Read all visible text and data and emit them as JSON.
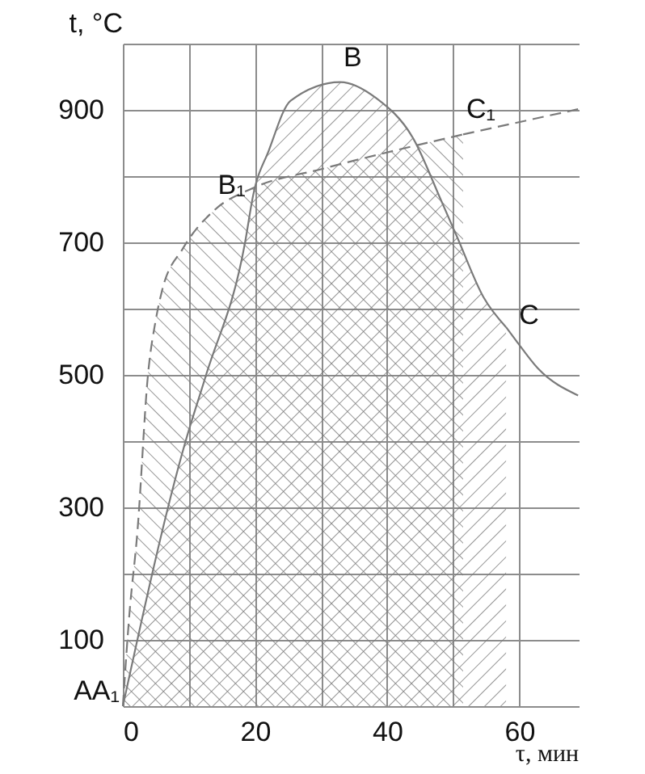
{
  "chart_data": {
    "type": "line",
    "xlabel": "τ, мин",
    "ylabel": "t, °C",
    "xlim": [
      0,
      69
    ],
    "ylim": [
      0,
      1000
    ],
    "xticks": [
      0,
      {
        "value": 10,
        "label": null
      },
      20,
      {
        "value": 30,
        "label": null
      },
      40,
      {
        "value": 50,
        "label": null
      },
      60
    ],
    "yticks": [
      {
        "value": 0,
        "label": null
      },
      100,
      {
        "value": 200,
        "label": null
      },
      300,
      {
        "value": 400,
        "label": null
      },
      500,
      {
        "value": 600,
        "label": null
      },
      700,
      {
        "value": 800,
        "label": null
      },
      900,
      {
        "value": 1000,
        "label": null
      }
    ],
    "grid": true,
    "series": [
      {
        "type": "area",
        "color": "#7a7a7a",
        "line_style": "dashed",
        "x": [
          0,
          1.0,
          2.2,
          3.8,
          5.0,
          5.9,
          9.1,
          13.9,
          19.7,
          30.2,
          51.5
        ],
        "values": [
          0,
          140,
          263,
          500,
          584,
          626,
          691,
          749,
          782,
          811,
          863
        ]
      },
      {
        "color": "#7a7a7a",
        "line_style": "dashed",
        "x": [
          51.5,
          68.9
        ],
        "values": [
          863,
          901
        ]
      },
      {
        "type": "area",
        "color": "#7a7a7a",
        "line_style": "solid",
        "x": [
          0,
          9.5,
          12.6,
          18.5,
          19.7,
          22.1,
          25.4,
          32.9,
          38.3,
          44,
          48.1,
          50.6,
          54.6,
          58
        ],
        "values": [
          0,
          400,
          500,
          700,
          770,
          839,
          914,
          942,
          918,
          856,
          765,
          708,
          617,
          572
        ]
      },
      {
        "color": "#7a7a7a",
        "line_style": "solid",
        "x": [
          58,
          59.5,
          62.8,
          68.9
        ],
        "values": [
          572,
          552,
          510,
          469
        ]
      }
    ],
    "annotations": [
      {
        "text": "AA₁",
        "x": 0,
        "y": 0
      },
      {
        "text": "B₁",
        "x": 13.9,
        "y": 749
      },
      {
        "text": "B",
        "x": 32.9,
        "y": 942
      },
      {
        "text": "C₁",
        "x": 51.5,
        "y": 863
      },
      {
        "text": "C",
        "x": 59.5,
        "y": 552
      }
    ]
  }
}
